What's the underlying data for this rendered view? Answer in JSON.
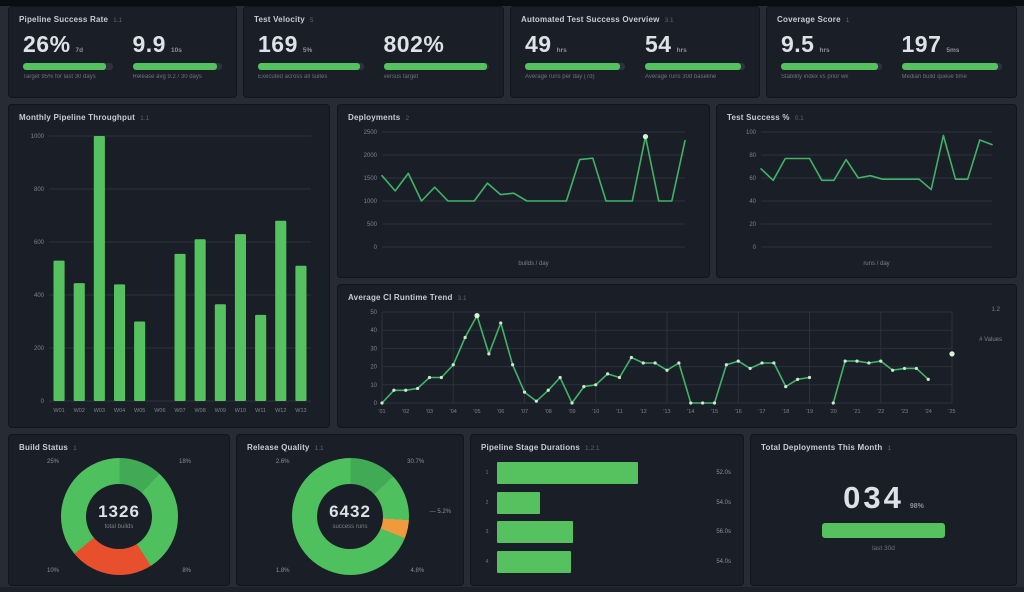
{
  "colors": {
    "page_bg": "#272b34",
    "panel_bg": "#1a1e27",
    "green": "#55c25f",
    "line_green": "#3fb468",
    "red": "#e8502d",
    "orange": "#f09a3e",
    "grid": "#2c313c",
    "tick": "#7c8290",
    "text": "#dde1e8",
    "muted": "#6d7380"
  },
  "kpi_cards": [
    {
      "title": "Pipeline Success Rate",
      "meta": "1.1",
      "metrics": [
        {
          "value": "26%",
          "unit": "7d",
          "bar_pct": 93,
          "caption": "Target 95% for last 30 days"
        },
        {
          "value": "9.9",
          "unit": "10s",
          "bar_pct": 94,
          "caption": "Release avg 9.2 / 30 days"
        }
      ]
    },
    {
      "title": "Test Velocity",
      "meta": "5",
      "metrics": [
        {
          "value": "169",
          "unit": "5%",
          "bar_pct": 97,
          "caption": "Executed across all suites"
        },
        {
          "value": "802%",
          "unit": "",
          "bar_pct": 98,
          "caption": "versus target"
        }
      ]
    },
    {
      "title": "Automated Test Success Overview",
      "meta": "3.1",
      "metrics": [
        {
          "value": "49",
          "unit": "hrs",
          "bar_pct": 95,
          "caption": "Average runs per day (7d)"
        },
        {
          "value": "54",
          "unit": "hrs",
          "bar_pct": 96,
          "caption": "Average runs 30d baseline"
        }
      ]
    },
    {
      "title": "Coverage Score",
      "meta": "1",
      "metrics": [
        {
          "value": "9.5",
          "unit": "hrs",
          "bar_pct": 97,
          "caption": "Stability index vs prior wk"
        },
        {
          "value": "197",
          "unit": "5ms",
          "bar_pct": 96,
          "caption": "Median build queue time"
        }
      ]
    }
  ],
  "chart_data": [
    {
      "id": "pipeline-throughput-bars",
      "type": "bar",
      "title": "Monthly Pipeline Throughput",
      "title_suffix": "1.1",
      "categories": [
        "W01",
        "W02",
        "W03",
        "W04",
        "W05",
        "W06",
        "W07",
        "W08",
        "W09",
        "W10",
        "W11",
        "W12",
        "W13"
      ],
      "values": [
        530,
        445,
        1000,
        440,
        300,
        0,
        555,
        610,
        365,
        630,
        325,
        680,
        510
      ],
      "ylim": [
        0,
        1000
      ],
      "yticks": [
        1000,
        800,
        600,
        400,
        200,
        0
      ],
      "bar_color": "#55c25f",
      "grid": true,
      "legend": "none"
    },
    {
      "id": "deployments-line",
      "type": "line",
      "title": "Deployments",
      "title_suffix": "2",
      "values": [
        1550,
        1220,
        1600,
        1000,
        1300,
        1000,
        1000,
        1000,
        1390,
        1140,
        1170,
        1000,
        1000,
        1000,
        1000,
        1900,
        1930,
        1000,
        1000,
        1000,
        2400,
        1000,
        1000,
        2310
      ],
      "ylim": [
        0,
        2500
      ],
      "yticks": [
        2500,
        2000,
        1500,
        1000,
        500,
        0
      ],
      "markers": [
        20
      ],
      "xlabel": "builds / day",
      "line_color": "#3fb468",
      "grid": true,
      "legend": "none"
    },
    {
      "id": "test-success-line",
      "type": "line",
      "title": "Test Success %",
      "title_suffix": "0.1",
      "values": [
        68,
        58,
        77,
        77,
        77,
        58,
        58,
        76,
        60,
        62,
        59,
        59,
        59,
        59,
        50,
        97,
        59,
        59,
        93,
        89
      ],
      "ylim": [
        0,
        100
      ],
      "yticks": [
        100,
        80,
        60,
        40,
        20,
        0
      ],
      "markers": [],
      "xlabel": "runs / day",
      "line_color": "#3fb468",
      "grid": true,
      "legend": "none"
    },
    {
      "id": "ci-runtime-line",
      "type": "line",
      "title": "Average CI Runtime Trend",
      "title_suffix": "3.1",
      "right_top_note": "1.2",
      "right_note": "# Values",
      "values": [
        0,
        7,
        7,
        8,
        14,
        14,
        21,
        36,
        48,
        27,
        44,
        21,
        6,
        1,
        7,
        14,
        0,
        9,
        10,
        16,
        14,
        25,
        22,
        22,
        18,
        22,
        0,
        0,
        0,
        21,
        23,
        19,
        22,
        22,
        9,
        13,
        14,
        null,
        0,
        23,
        23,
        22,
        23,
        18,
        19,
        19,
        13,
        null,
        27
      ],
      "ylim": [
        0,
        50
      ],
      "yticks": [
        50,
        40,
        30,
        20,
        10,
        0
      ],
      "xticks": [
        "'01",
        "'02",
        "'03",
        "'04",
        "'05",
        "'06",
        "'07",
        "'08",
        "'09",
        "'10",
        "'11",
        "'12",
        "'13",
        "'14",
        "'15",
        "'16",
        "'17",
        "'18",
        "'19",
        "'20",
        "'21",
        "'22",
        "'23",
        "'24",
        "'25"
      ],
      "dots": "all",
      "markers": [
        8,
        48
      ],
      "vgrid": true,
      "line_color": "#3fb468",
      "grid": true,
      "legend": "none"
    },
    {
      "id": "build-status-donut",
      "type": "donut",
      "title": "Build Status",
      "title_suffix": "1",
      "center_value": "1326",
      "center_sub": "total builds",
      "segments": [
        {
          "pct": 12,
          "color": "#41aa54",
          "label": "darker-green"
        },
        {
          "pct": 29,
          "color": "#4ec05e",
          "label": "green"
        },
        {
          "pct": 23,
          "color": "#e8502d",
          "label": "failed-red"
        },
        {
          "pct": 36,
          "color": "#4ec05e",
          "label": "green"
        }
      ],
      "corner_labels": {
        "tl": "25%",
        "tr": "18%",
        "bl": "10%",
        "br": "8%"
      }
    },
    {
      "id": "release-quality-donut",
      "type": "donut",
      "title": "Release Quality",
      "title_suffix": "1.1",
      "center_value": "6432",
      "center_sub": "success runs",
      "segments": [
        {
          "pct": 13,
          "color": "#41aa54",
          "label": "darker-green"
        },
        {
          "pct": 13,
          "color": "#4ec05e",
          "label": "green"
        },
        {
          "pct": 5,
          "color": "#f09a3e",
          "label": "warning-orange"
        },
        {
          "pct": 69,
          "color": "#4ec05e",
          "label": "green"
        }
      ],
      "corner_labels": {
        "tl": "2.6%",
        "tr": "30.7%",
        "bl": "1.8%",
        "br": "4.8%"
      },
      "side_label": "5.2%"
    },
    {
      "id": "stage-durations-hbar",
      "type": "hbar",
      "title": "Pipeline Stage Durations",
      "title_suffix": "1.2.1",
      "rows": [
        {
          "tick": "1",
          "pct": 72,
          "value": "52.0s"
        },
        {
          "tick": "2",
          "pct": 22,
          "value": "54.0s"
        },
        {
          "tick": "3",
          "pct": 39,
          "value": "56.0s"
        },
        {
          "tick": "4",
          "pct": 38,
          "value": "54.0s"
        }
      ],
      "bar_color": "#55c25f"
    },
    {
      "id": "deployments-stat",
      "type": "stat",
      "title": "Total Deployments This Month",
      "title_suffix": "1",
      "value": "034",
      "unit": "98%",
      "bar_pct": 100,
      "caption": "last 30d"
    }
  ]
}
